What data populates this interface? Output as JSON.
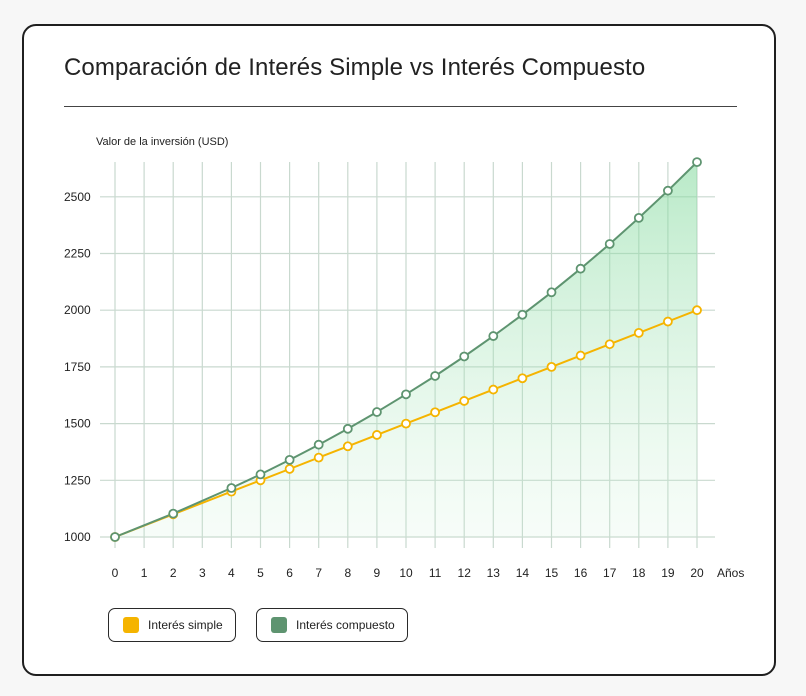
{
  "title": "Comparación de Interés Simple vs Interés Compuesto",
  "chart_data": {
    "type": "line",
    "title": "Comparación de Interés Simple vs Interés Compuesto",
    "ylabel": "Valor de la inversión (USD)",
    "xlabel": "Años",
    "x": [
      0,
      1,
      2,
      3,
      4,
      5,
      6,
      7,
      8,
      9,
      10,
      11,
      12,
      13,
      14,
      15,
      16,
      17,
      18,
      19,
      20
    ],
    "xticks": [
      "0",
      "1",
      "2",
      "3",
      "4",
      "5",
      "6",
      "7",
      "8",
      "9",
      "10",
      "11",
      "12",
      "13",
      "14",
      "15",
      "16",
      "17",
      "18",
      "19",
      "20"
    ],
    "ylim": [
      1000,
      2600
    ],
    "yticks": [
      1000,
      1250,
      1500,
      1750,
      2000,
      2250,
      2500
    ],
    "grid": true,
    "series": [
      {
        "name": "Interés simple",
        "color": "#f5b400",
        "x": [
          0,
          2,
          4,
          5,
          6,
          7,
          8,
          9,
          10,
          11,
          12,
          13,
          14,
          15,
          16,
          17,
          18,
          19,
          20
        ],
        "values": [
          1000,
          1100,
          1200,
          1250,
          1300,
          1350,
          1400,
          1450,
          1500,
          1550,
          1600,
          1650,
          1700,
          1750,
          1800,
          1850,
          1900,
          1950,
          2000
        ]
      },
      {
        "name": "Interés compuesto",
        "color": "#5e9470",
        "x": [
          0,
          2,
          4,
          5,
          6,
          7,
          8,
          9,
          10,
          11,
          12,
          13,
          14,
          15,
          16,
          17,
          18,
          19,
          20
        ],
        "values": [
          1000,
          1103,
          1216,
          1276,
          1340,
          1407,
          1477,
          1551,
          1629,
          1710,
          1796,
          1886,
          1980,
          2079,
          2183,
          2292,
          2407,
          2527,
          2653
        ]
      }
    ],
    "legend": "bottom-left"
  }
}
